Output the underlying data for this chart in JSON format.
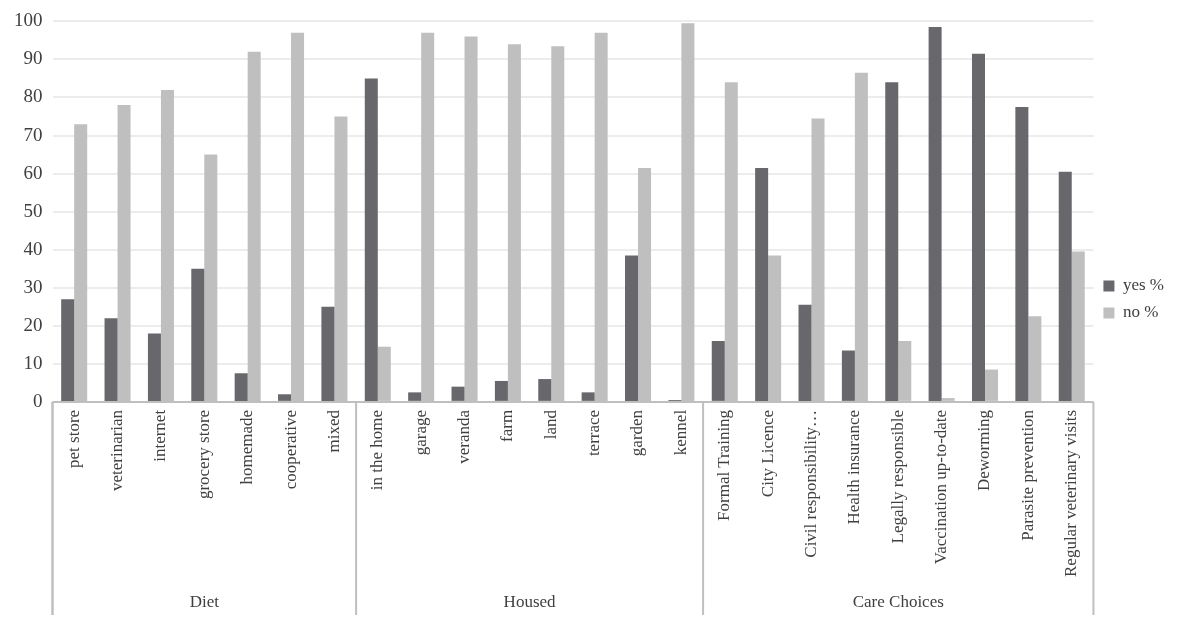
{
  "chart_data": {
    "type": "bar",
    "categories": [
      "pet store",
      "veterinarian",
      "internet",
      "grocery store",
      "homemade",
      "cooperative",
      "mixed",
      "in the home",
      "garage",
      "veranda",
      "farm",
      "land",
      "terrace",
      "garden",
      "kennel",
      "Formal Training",
      "City Licence",
      "Civil responsibility…",
      "Health insurance",
      "Legally responsible",
      "Vaccination up-to-date",
      "Deworming",
      "Parasite prevention",
      "Regular veterinary visits"
    ],
    "series": [
      {
        "name": "yes %",
        "color": "#68676c",
        "values": [
          27,
          22,
          18,
          35,
          7.5,
          2,
          25,
          85,
          2.5,
          4,
          5.5,
          6,
          2.5,
          38.5,
          0.5,
          16,
          61.5,
          25.5,
          13.5,
          84,
          98.5,
          91.5,
          77.5,
          60.5
        ]
      },
      {
        "name": "no %",
        "color": "#bfbfbf",
        "values": [
          73,
          78,
          82,
          65,
          92,
          97,
          75,
          14.5,
          97,
          96,
          94,
          93.5,
          97,
          61.5,
          99.5,
          84,
          38.5,
          74.5,
          86.5,
          16,
          1,
          8.5,
          22.5,
          39.5
        ]
      }
    ],
    "ylim": [
      0,
      100
    ],
    "yticks": [
      0,
      10,
      20,
      30,
      40,
      50,
      60,
      70,
      80,
      90,
      100
    ],
    "grid": "y",
    "legend": "right",
    "annotations": [
      "Diet",
      "Housed",
      "Care Choices"
    ]
  }
}
